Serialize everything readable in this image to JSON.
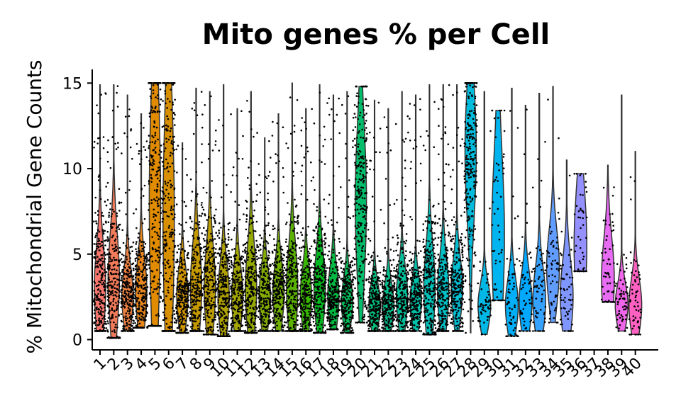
{
  "chart_data": {
    "type": "violin",
    "title": "Mito genes % per Cell",
    "xlabel": "",
    "ylabel": "% Mitochondrial Gene Counts",
    "ylim": [
      -0.6,
      15.8
    ],
    "yticks": [
      0,
      5,
      10,
      15
    ],
    "ytick_labels": [
      "0",
      "5",
      "10",
      "15"
    ],
    "categories": [
      "1",
      "2",
      "3",
      "4",
      "5",
      "6",
      "7",
      "8",
      "9",
      "10",
      "11",
      "12",
      "13",
      "14",
      "15",
      "16",
      "17",
      "18",
      "19",
      "20",
      "21",
      "22",
      "23",
      "24",
      "25",
      "26",
      "27",
      "28",
      "29",
      "30",
      "31",
      "32",
      "33",
      "34",
      "35",
      "36",
      "37",
      "38",
      "39",
      "40"
    ],
    "x_tick_labels_visible": [
      "1",
      "2",
      "3",
      "4",
      "5",
      "6",
      "7",
      "8",
      "9",
      "10",
      "11",
      "12",
      "13",
      "14",
      "15",
      "16",
      "17",
      "18",
      "19",
      "20",
      "21",
      "22",
      "23",
      "24",
      "25",
      "26",
      "27",
      "28",
      "29",
      "30",
      "31",
      "32",
      "33",
      "34",
      "35",
      "36",
      "37",
      "38",
      "39",
      "40"
    ],
    "colors": [
      "#F8766D",
      "#F37B59",
      "#ED8141",
      "#E7861B",
      "#E08B00",
      "#D89000",
      "#CF9400",
      "#C59900",
      "#BB9D00",
      "#AFA100",
      "#A3A500",
      "#95A900",
      "#85AD00",
      "#72B000",
      "#5BB300",
      "#39B600",
      "#00B81F",
      "#00BA42",
      "#00BC59",
      "#00BD6C",
      "#00BF7D",
      "#00C08D",
      "#00C19C",
      "#00C1AA",
      "#00C0B8",
      "#00BFC4",
      "#00BDD0",
      "#00BBDB",
      "#00B8E5",
      "#00B4EF",
      "#00AFF8",
      "#00A9FF",
      "#35A2FF",
      "#619CFF",
      "#7F96FF",
      "#9590FF",
      "#A58AFF",
      "#E76BF3",
      "#F066EA",
      "#FF61C3"
    ],
    "series": [
      {
        "name": "1",
        "median": 3.0,
        "q1": 2.0,
        "q3": 4.5,
        "min": 0.5,
        "max": 14.9,
        "violin_visible": false
      },
      {
        "name": "2",
        "median": 3.5,
        "q1": 2.2,
        "q3": 5.0,
        "min": 0.1,
        "max": 14.9,
        "violin_visible": false
      },
      {
        "name": "3",
        "median": 2.5,
        "q1": 1.8,
        "q3": 3.5,
        "min": 0.5,
        "max": 14.3,
        "violin_visible": false
      },
      {
        "name": "4",
        "median": 2.8,
        "q1": 2.0,
        "q3": 4.0,
        "min": 0.7,
        "max": 13.2,
        "violin_visible": false
      },
      {
        "name": "5",
        "median": 8.0,
        "q1": 5.0,
        "q3": 12.0,
        "min": 0.8,
        "max": 15.0,
        "violin_visible": false
      },
      {
        "name": "6",
        "median": 7.0,
        "q1": 4.0,
        "q3": 11.0,
        "min": 0.5,
        "max": 15.0,
        "violin_visible": false
      },
      {
        "name": "7",
        "median": 2.5,
        "q1": 1.8,
        "q3": 3.5,
        "min": 0.4,
        "max": 11.5,
        "violin_visible": false
      },
      {
        "name": "8",
        "median": 3.0,
        "q1": 2.0,
        "q3": 4.5,
        "min": 0.5,
        "max": 14.7,
        "violin_visible": false
      },
      {
        "name": "9",
        "median": 3.0,
        "q1": 2.0,
        "q3": 4.5,
        "min": 0.3,
        "max": 14.5,
        "violin_visible": false
      },
      {
        "name": "10",
        "median": 2.5,
        "q1": 1.8,
        "q3": 3.8,
        "min": 0.2,
        "max": 14.9,
        "violin_visible": false
      },
      {
        "name": "11",
        "median": 2.5,
        "q1": 1.8,
        "q3": 3.6,
        "min": 0.5,
        "max": 13.5,
        "violin_visible": false
      },
      {
        "name": "12",
        "median": 3.0,
        "q1": 2.0,
        "q3": 4.5,
        "min": 0.4,
        "max": 14.5,
        "violin_visible": false
      },
      {
        "name": "13",
        "median": 2.5,
        "q1": 1.8,
        "q3": 3.5,
        "min": 0.5,
        "max": 11.8,
        "violin_visible": false
      },
      {
        "name": "14",
        "median": 2.7,
        "q1": 2.0,
        "q3": 3.8,
        "min": 0.5,
        "max": 13.2,
        "violin_visible": false
      },
      {
        "name": "15",
        "median": 3.0,
        "q1": 2.0,
        "q3": 4.5,
        "min": 0.5,
        "max": 15.0,
        "violin_visible": false
      },
      {
        "name": "16",
        "median": 2.5,
        "q1": 1.8,
        "q3": 3.5,
        "min": 0.5,
        "max": 13.5,
        "violin_visible": false
      },
      {
        "name": "17",
        "median": 3.0,
        "q1": 2.0,
        "q3": 4.2,
        "min": 0.4,
        "max": 14.9,
        "violin_visible": false
      },
      {
        "name": "18",
        "median": 2.5,
        "q1": 1.8,
        "q3": 3.5,
        "min": 0.6,
        "max": 14.3,
        "violin_visible": false
      },
      {
        "name": "19",
        "median": 2.2,
        "q1": 1.6,
        "q3": 3.0,
        "min": 0.4,
        "max": 14.5,
        "violin_visible": false
      },
      {
        "name": "20",
        "median": 8.0,
        "q1": 6.0,
        "q3": 10.5,
        "min": 1.0,
        "max": 14.8,
        "violin_visible": false
      },
      {
        "name": "21",
        "median": 2.0,
        "q1": 1.5,
        "q3": 2.8,
        "min": 0.5,
        "max": 14.0,
        "violin_visible": false
      },
      {
        "name": "22",
        "median": 2.0,
        "q1": 1.5,
        "q3": 2.8,
        "min": 0.5,
        "max": 13.5,
        "violin_visible": false
      },
      {
        "name": "23",
        "median": 2.5,
        "q1": 1.8,
        "q3": 3.5,
        "min": 0.5,
        "max": 14.5,
        "violin_visible": false
      },
      {
        "name": "24",
        "median": 2.2,
        "q1": 1.6,
        "q3": 3.0,
        "min": 0.5,
        "max": 14.3,
        "violin_visible": false
      },
      {
        "name": "25",
        "median": 3.0,
        "q1": 2.0,
        "q3": 4.5,
        "min": 0.3,
        "max": 14.9,
        "violin_visible": false
      },
      {
        "name": "26",
        "median": 2.8,
        "q1": 2.0,
        "q3": 4.0,
        "min": 0.5,
        "max": 14.9,
        "violin_visible": false
      },
      {
        "name": "27",
        "median": 3.0,
        "q1": 2.2,
        "q3": 4.0,
        "min": 0.5,
        "max": 14.9,
        "violin_visible": false
      },
      {
        "name": "28",
        "median": 11.0,
        "q1": 9.0,
        "q3": 13.0,
        "min": 0.4,
        "max": 15.0,
        "violin_visible": false
      },
      {
        "name": "29",
        "median": 2.0,
        "q1": 1.5,
        "q3": 2.8,
        "min": 0.3,
        "max": 14.5,
        "violin_visible": true
      },
      {
        "name": "30",
        "median": 6.0,
        "q1": 4.0,
        "q3": 9.0,
        "min": 2.3,
        "max": 13.4,
        "violin_visible": true
      },
      {
        "name": "31",
        "median": 2.0,
        "q1": 1.4,
        "q3": 3.0,
        "min": 0.2,
        "max": 14.7,
        "violin_visible": true
      },
      {
        "name": "32",
        "median": 2.2,
        "q1": 1.5,
        "q3": 3.2,
        "min": 0.5,
        "max": 13.7,
        "violin_visible": true
      },
      {
        "name": "33",
        "median": 2.3,
        "q1": 1.6,
        "q3": 3.5,
        "min": 0.5,
        "max": 14.4,
        "violin_visible": true
      },
      {
        "name": "34",
        "median": 4.2,
        "q1": 3.0,
        "q3": 5.2,
        "min": 1.0,
        "max": 14.8,
        "violin_visible": true
      },
      {
        "name": "35",
        "median": 2.5,
        "q1": 1.6,
        "q3": 3.8,
        "min": 0.5,
        "max": 10.5,
        "violin_visible": true
      },
      {
        "name": "36",
        "median": 5.5,
        "q1": 4.0,
        "q3": 7.5,
        "min": 4.0,
        "max": 9.7,
        "violin_visible": true
      },
      {
        "name": "37",
        "median": null,
        "q1": null,
        "q3": null,
        "min": null,
        "max": null,
        "violin_visible": false
      },
      {
        "name": "38",
        "median": 3.5,
        "q1": 2.5,
        "q3": 5.0,
        "min": 2.2,
        "max": 10.2,
        "violin_visible": true
      },
      {
        "name": "39",
        "median": 2.0,
        "q1": 1.5,
        "q3": 2.8,
        "min": 0.5,
        "max": 14.3,
        "violin_visible": true
      },
      {
        "name": "40",
        "median": 2.0,
        "q1": 1.4,
        "q3": 3.0,
        "min": 0.3,
        "max": 11.0,
        "violin_visible": true
      }
    ],
    "points_color": "#000000",
    "grid": false,
    "legend": "none"
  }
}
